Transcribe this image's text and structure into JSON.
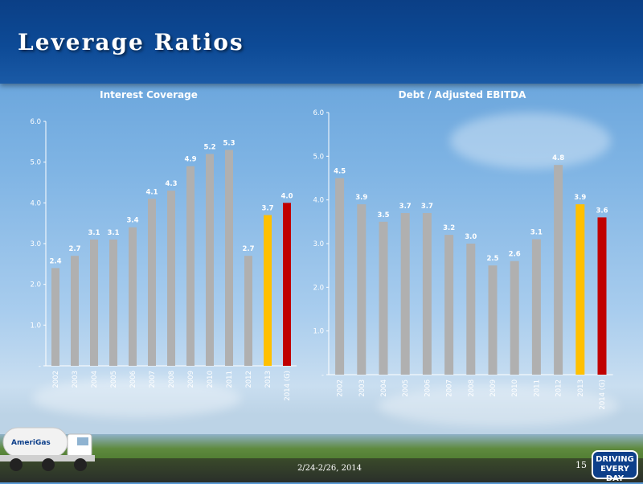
{
  "header": {
    "title": "Leverage Ratios"
  },
  "footer": {
    "date": "2/24-2/26, 2014",
    "page": "15"
  },
  "logos": {
    "company": "AmeriGas",
    "badge_line1": "DRIVING",
    "badge_line2": "EVERY DAY"
  },
  "colors": {
    "bar": "#b0b0b0",
    "highlight_2013": "#ffc000",
    "highlight_2014": "#c00000"
  },
  "chart_data": [
    {
      "type": "bar",
      "title": "Interest Coverage",
      "categories": [
        "2002",
        "2003",
        "2004",
        "2005",
        "2006",
        "2007",
        "2008",
        "2009",
        "2010",
        "2011",
        "2012",
        "2013",
        "2014 (G)"
      ],
      "values": [
        2.4,
        2.7,
        3.1,
        3.1,
        3.4,
        4.1,
        4.3,
        4.9,
        5.2,
        5.3,
        2.7,
        3.7,
        4.0
      ],
      "data_labels": [
        "2.4",
        "2.7",
        "3.1",
        "3.1",
        "3.4",
        "4.1",
        "4.3",
        "4.9",
        "5.2",
        "5.3",
        "2.7",
        "3.7",
        "4.0"
      ],
      "ylim": [
        0,
        6
      ],
      "yticks": [
        "-",
        "1.0",
        "2.0",
        "3.0",
        "4.0",
        "5.0",
        "6.0"
      ],
      "grid": false,
      "legend": "none"
    },
    {
      "type": "bar",
      "title": "Debt / Adjusted EBITDA",
      "categories": [
        "2002",
        "2003",
        "2004",
        "2005",
        "2006",
        "2007",
        "2008",
        "2009",
        "2010",
        "2011",
        "2012",
        "2013",
        "2014 (G)"
      ],
      "values": [
        4.5,
        3.9,
        3.5,
        3.7,
        3.7,
        3.2,
        3.0,
        2.5,
        2.6,
        3.1,
        4.8,
        3.9,
        3.6
      ],
      "data_labels": [
        "4.5",
        "3.9",
        "3.5",
        "3.7",
        "3.7",
        "3.2",
        "3.0",
        "2.5",
        "2.6",
        "3.1",
        "4.8",
        "3.9",
        "3.6"
      ],
      "ylim": [
        0,
        6
      ],
      "yticks": [
        "-",
        "1.0",
        "2.0",
        "3.0",
        "4.0",
        "5.0",
        "6.0"
      ],
      "grid": false,
      "legend": "none"
    }
  ]
}
